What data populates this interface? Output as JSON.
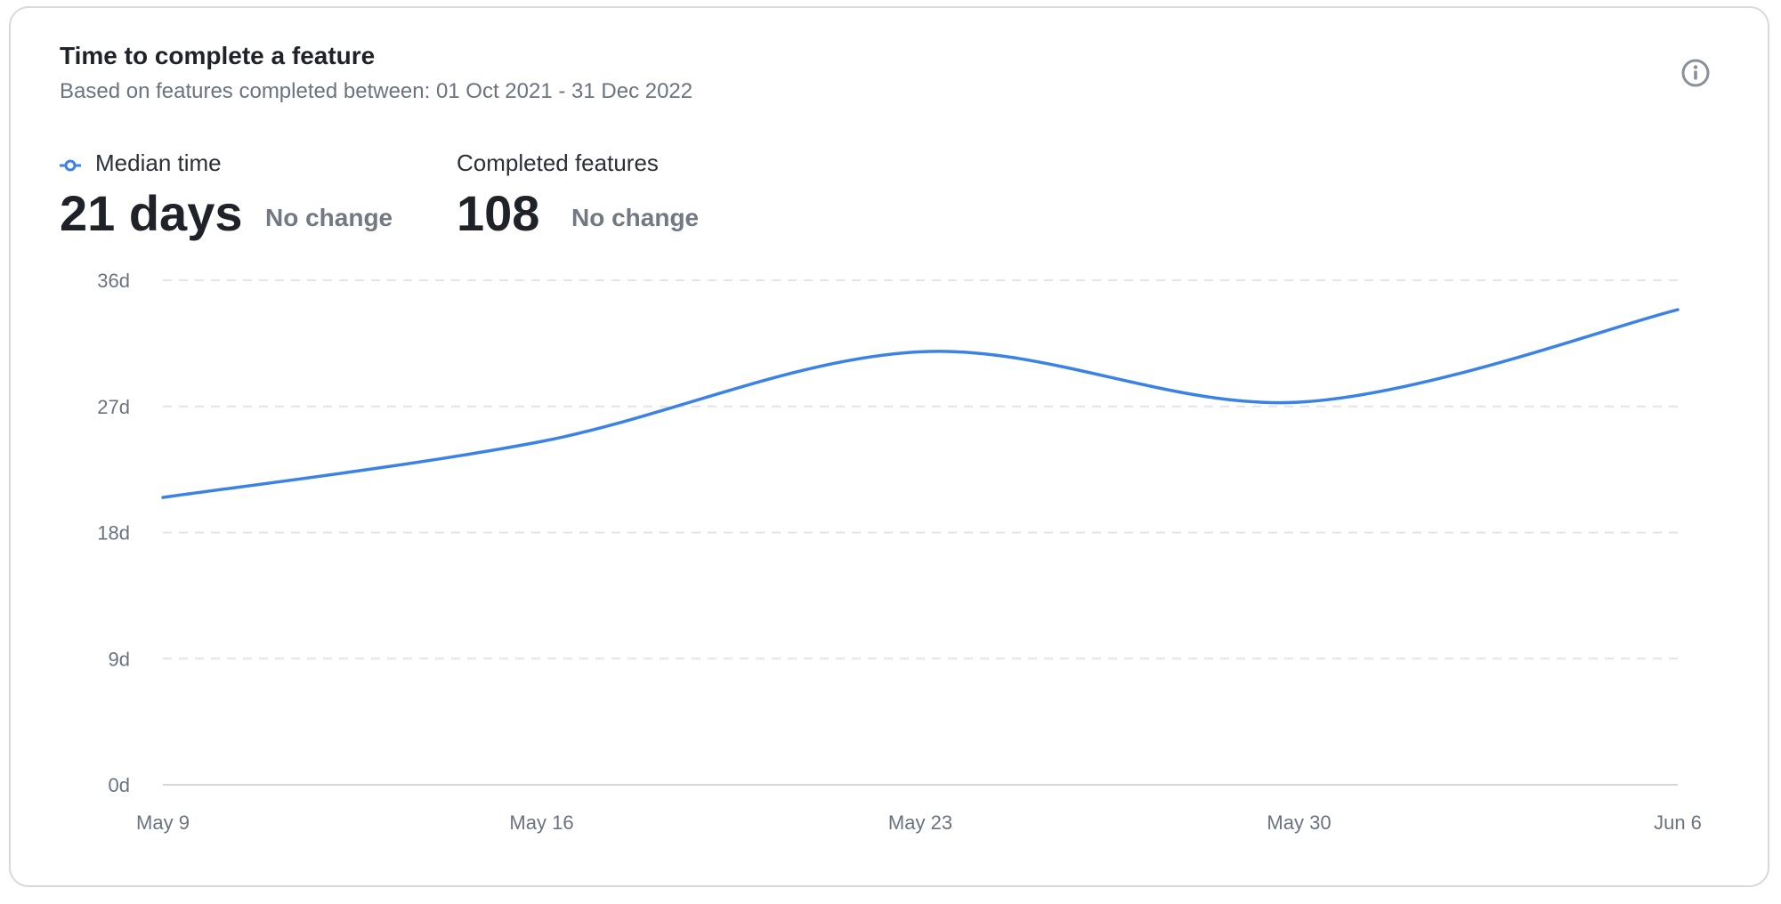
{
  "card": {
    "title": "Time to complete a feature",
    "subtitle": "Based on features completed between: 01 Oct 2021 - 31 Dec 2022",
    "info_icon": "info-circle-icon"
  },
  "metrics": [
    {
      "label": "Median time",
      "value": "21 days",
      "change": "No change",
      "legend_icon": "line-series-marker-icon"
    },
    {
      "label": "Completed features",
      "value": "108",
      "change": "No change"
    }
  ],
  "colors": {
    "series": "#3b82e6",
    "grid": "#e2e4e8",
    "text_muted": "#6b7280",
    "text_strong": "#1f2329"
  },
  "chart_data": {
    "type": "line",
    "x": [
      "May 9",
      "May 16",
      "May 23",
      "May 30",
      "Jun 6"
    ],
    "series": [
      {
        "name": "Median time",
        "values": [
          20.5,
          24.5,
          30.9,
          27.3,
          33.9
        ]
      }
    ],
    "ylim": [
      0,
      36
    ],
    "y_ticks": [
      {
        "value": 36,
        "label": "36d"
      },
      {
        "value": 27,
        "label": "27d"
      },
      {
        "value": 18,
        "label": "18d"
      },
      {
        "value": 9,
        "label": "9d"
      },
      {
        "value": 0,
        "label": "0d"
      }
    ],
    "grid": true,
    "smooth": true
  }
}
